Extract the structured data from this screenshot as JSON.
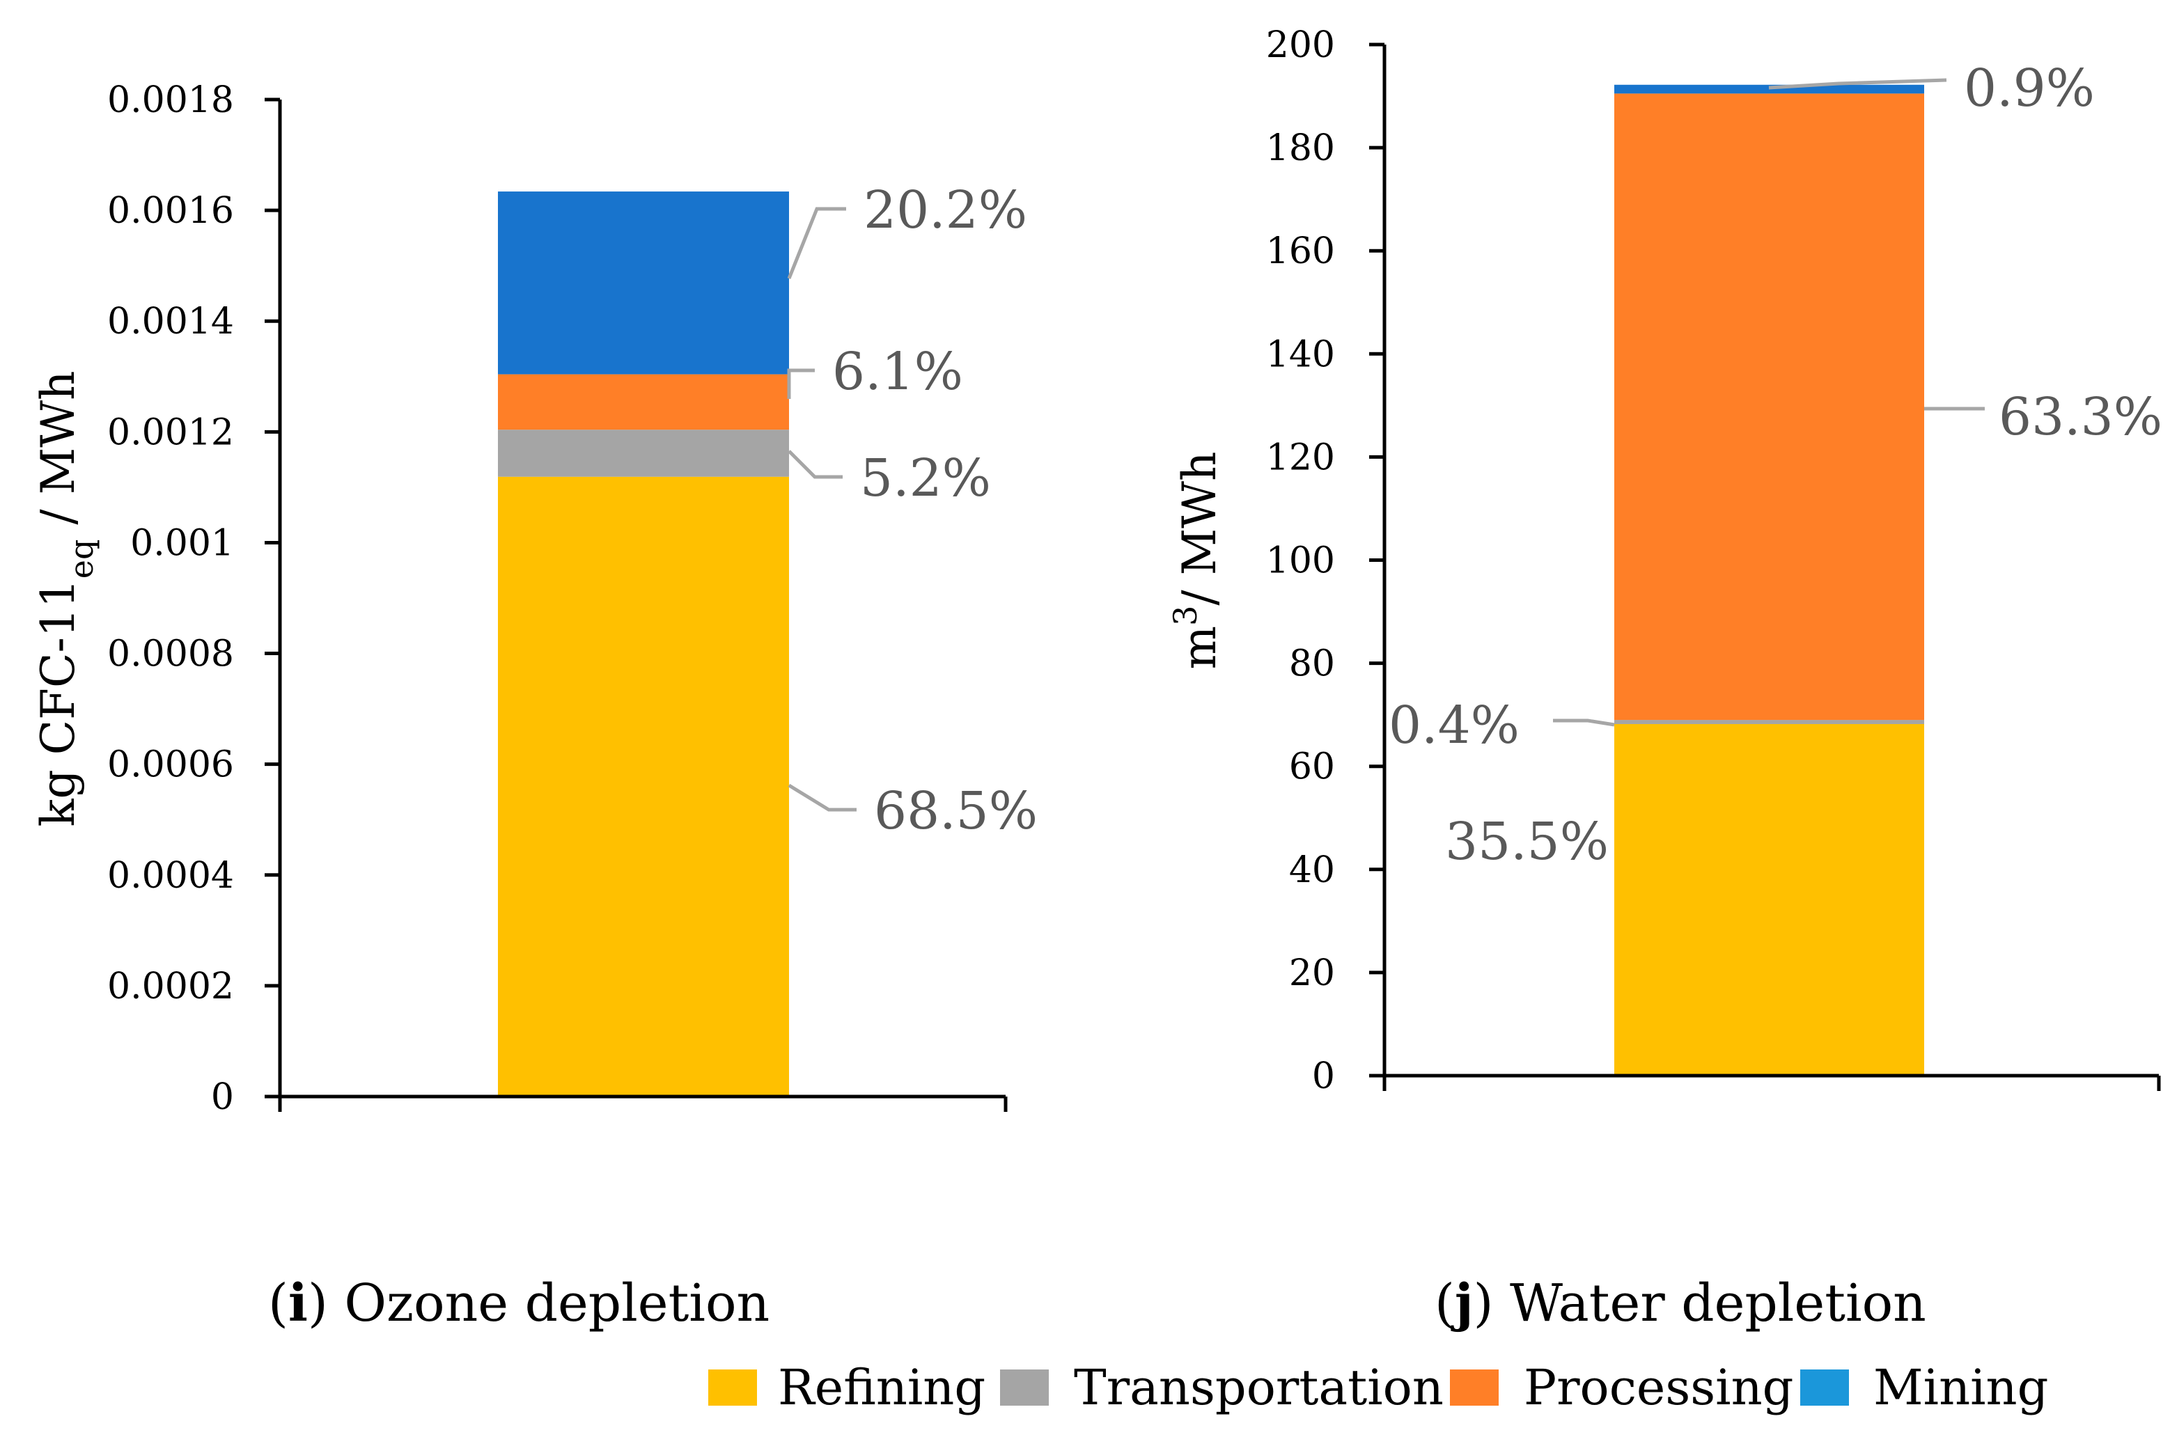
{
  "chart_data": [
    {
      "type": "bar",
      "stacked": true,
      "caption_letter": "i",
      "caption_text": "Ozone depletion",
      "ylabel_main": "kg CFC-11",
      "ylabel_sub": "eq",
      "ylabel_tail": " / MWh",
      "ylim": [
        0,
        0.0018
      ],
      "yticks": [
        "0",
        "0.0002",
        "0.0004",
        "0.0006",
        "0.0008",
        "0.001",
        "0.0012",
        "0.0014",
        "0.0016",
        "0.0018"
      ],
      "categories": [
        ""
      ],
      "series": [
        {
          "name": "Refining",
          "values": [
            0.001119
          ],
          "label": "68.5%"
        },
        {
          "name": "Transportation",
          "values": [
            8.5e-05
          ],
          "label": "5.2%"
        },
        {
          "name": "Processing",
          "values": [
            0.0001
          ],
          "label": "6.1%"
        },
        {
          "name": "Mining",
          "values": [
            0.00033
          ],
          "label": "20.2%"
        }
      ]
    },
    {
      "type": "bar",
      "stacked": true,
      "caption_letter": "j",
      "caption_text": "Water depletion",
      "ylabel_main": "m",
      "ylabel_sup": "3",
      "ylabel_tail": "/ MWh",
      "ylim": [
        0,
        200
      ],
      "yticks": [
        "0",
        "20",
        "40",
        "60",
        "80",
        "100",
        "120",
        "140",
        "160",
        "180",
        "200"
      ],
      "categories": [
        ""
      ],
      "series": [
        {
          "name": "Refining",
          "values": [
            68.2
          ],
          "label": "35.5%"
        },
        {
          "name": "Transportation",
          "values": [
            0.8
          ],
          "label": "0.4%"
        },
        {
          "name": "Processing",
          "values": [
            121.5
          ],
          "label": "63.3%"
        },
        {
          "name": "Mining",
          "values": [
            1.7
          ],
          "label": "0.9%"
        }
      ]
    }
  ],
  "legend": [
    {
      "name": "Refining",
      "color": "#FFC000"
    },
    {
      "name": "Transportation",
      "color": "#A5A5A5"
    },
    {
      "name": "Processing",
      "color": "#FF7F27"
    },
    {
      "name": "Mining",
      "color": "#1B97DA"
    }
  ],
  "colors": {
    "Refining": "#FFC000",
    "Transportation": "#A5A5A5",
    "Processing": "#FF7F27",
    "Mining_left": "#1874CD",
    "Mining_right": "#1874CD",
    "leader": "#A6A6A6",
    "axis": "#000000"
  }
}
